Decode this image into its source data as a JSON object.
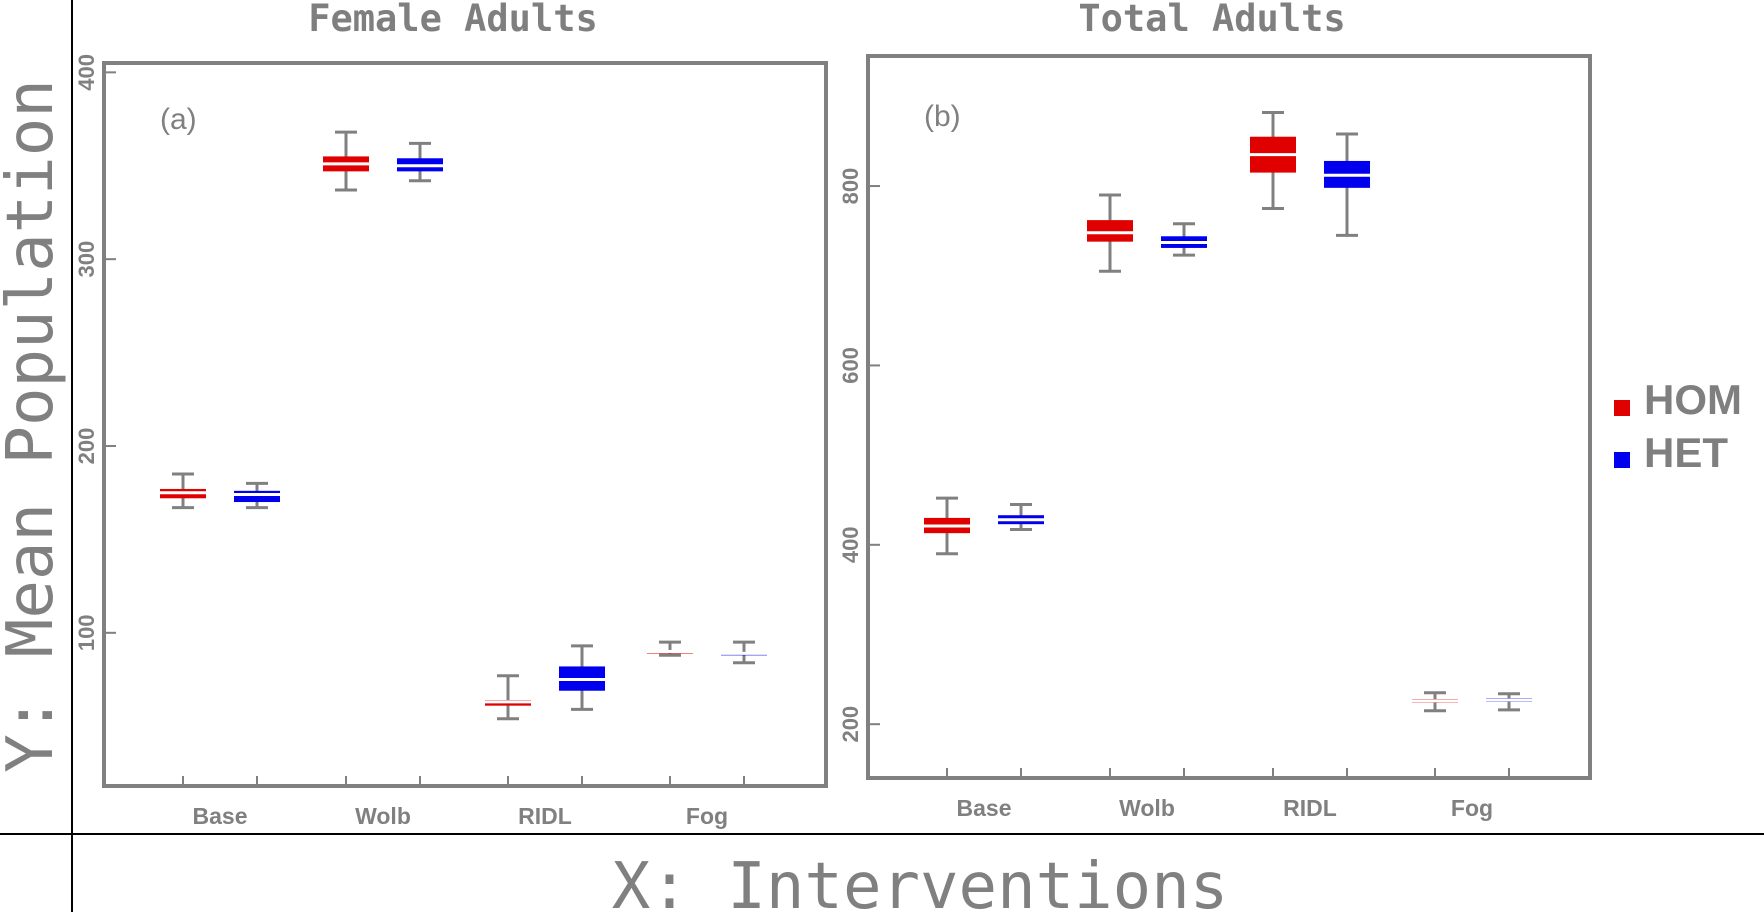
{
  "figure": {
    "ylabel": "Y: Mean Population",
    "xlabel": "X: Interventions"
  },
  "legend": [
    {
      "label": "HOM",
      "color": "#e00000"
    },
    {
      "label": "HET",
      "color": "#0000ee"
    }
  ],
  "colors": {
    "frame": "#808080",
    "whisker": "#808080",
    "HOM": "#e00000",
    "HET": "#0000ee"
  },
  "chart_data": [
    {
      "type": "boxplot",
      "title": "Female Adults",
      "tag": "(a)",
      "categories": [
        "Base",
        "Wolb",
        "RIDL",
        "Fog"
      ],
      "ylim": [
        18,
        405
      ],
      "yticks": [
        100,
        200,
        300,
        400
      ],
      "series": [
        {
          "name": "HOM",
          "boxes": [
            {
              "min": 167,
              "q1": 172,
              "median": 175,
              "q3": 177,
              "max": 185
            },
            {
              "min": 337,
              "q1": 347,
              "median": 351,
              "q3": 355,
              "max": 368
            },
            {
              "min": 54,
              "q1": 61,
              "median": 63,
              "q3": 64,
              "max": 77
            },
            {
              "min": 88,
              "q1": 89,
              "median": 90,
              "q3": 90,
              "max": 95
            }
          ]
        },
        {
          "name": "HET",
          "boxes": [
            {
              "min": 167,
              "q1": 170,
              "median": 174,
              "q3": 176,
              "max": 180
            },
            {
              "min": 342,
              "q1": 347,
              "median": 350,
              "q3": 354,
              "max": 362
            },
            {
              "min": 59,
              "q1": 69,
              "median": 75,
              "q3": 82,
              "max": 93
            },
            {
              "min": 84,
              "q1": 88,
              "median": 89,
              "q3": 89,
              "max": 95
            }
          ]
        }
      ]
    },
    {
      "type": "boxplot",
      "title": "Total Adults",
      "tag": "(b)",
      "categories": [
        "Base",
        "Wolb",
        "RIDL",
        "Fog"
      ],
      "ylim": [
        140,
        945
      ],
      "yticks": [
        200,
        400,
        600,
        800
      ],
      "series": [
        {
          "name": "HOM",
          "boxes": [
            {
              "min": 390,
              "q1": 413,
              "median": 421,
              "q3": 430,
              "max": 452
            },
            {
              "min": 705,
              "q1": 738,
              "median": 748,
              "q3": 762,
              "max": 790
            },
            {
              "min": 775,
              "q1": 815,
              "median": 835,
              "q3": 855,
              "max": 882
            },
            {
              "min": 215,
              "q1": 224,
              "median": 226,
              "q3": 228,
              "max": 235
            }
          ]
        },
        {
          "name": "HET",
          "boxes": [
            {
              "min": 417,
              "q1": 423,
              "median": 428,
              "q3": 433,
              "max": 445
            },
            {
              "min": 723,
              "q1": 731,
              "median": 737,
              "q3": 744,
              "max": 758
            },
            {
              "min": 745,
              "q1": 798,
              "median": 812,
              "q3": 828,
              "max": 858
            },
            {
              "min": 216,
              "q1": 225,
              "median": 227,
              "q3": 229,
              "max": 234
            }
          ]
        }
      ]
    }
  ]
}
